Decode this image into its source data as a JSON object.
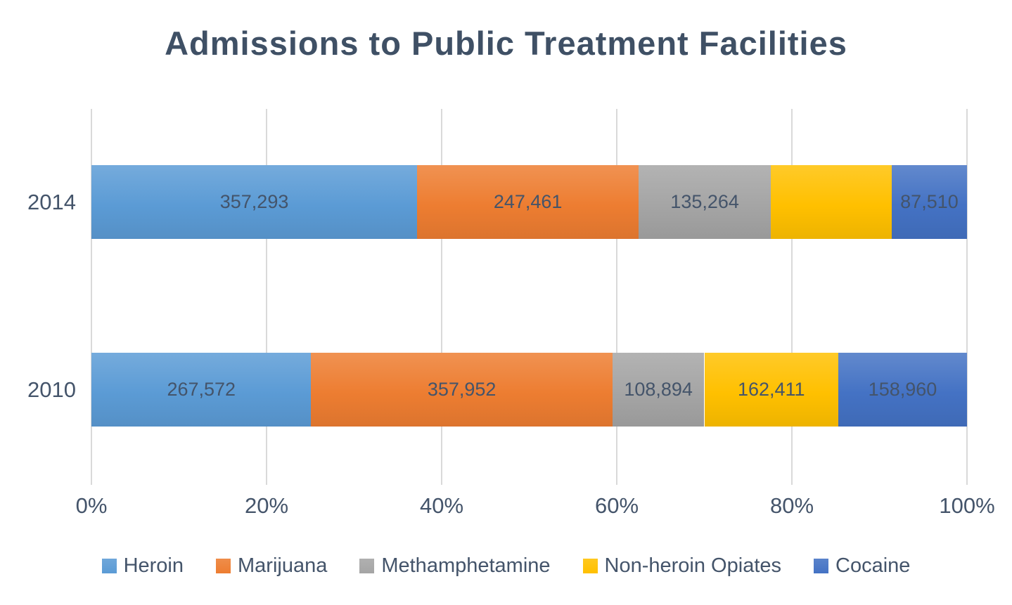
{
  "title": "Admissions to Public Treatment Facilities",
  "colors": {
    "text": "#44546A",
    "gridline": "#D9D9D9",
    "background": "#FFFFFF"
  },
  "chart_data": {
    "type": "bar",
    "orientation": "horizontal",
    "stacked": true,
    "percent_stacked": true,
    "title": "Admissions to Public Treatment Facilities",
    "categories": [
      "2014",
      "2010"
    ],
    "series": [
      {
        "name": "Heroin",
        "color": "#5B9BD5",
        "values": [
          357293,
          267572
        ],
        "labels": [
          "357,293",
          "267,572"
        ],
        "percent_widths": [
          37.2,
          25.1
        ]
      },
      {
        "name": "Marijuana",
        "color": "#ED7D31",
        "values": [
          247461,
          357952
        ],
        "labels": [
          "247,461",
          "357,952"
        ],
        "percent_widths": [
          25.3,
          34.4
        ]
      },
      {
        "name": "Methamphetamine",
        "color": "#A5A5A5",
        "values": [
          135264,
          108894
        ],
        "labels": [
          "135,264",
          "108,894"
        ],
        "percent_widths": [
          15.1,
          10.5
        ]
      },
      {
        "name": "Non-heroin Opiates",
        "color": "#FFC000",
        "values": [
          null,
          162411
        ],
        "labels": [
          "",
          "162,411"
        ],
        "percent_widths": [
          13.8,
          15.3
        ]
      },
      {
        "name": "Cocaine",
        "color": "#4472C4",
        "values": [
          87510,
          158960
        ],
        "labels": [
          "87,510",
          "158,960"
        ],
        "percent_widths": [
          8.6,
          14.7
        ]
      }
    ],
    "x_ticks": [
      "0%",
      "20%",
      "40%",
      "60%",
      "80%",
      "100%"
    ],
    "xlim": [
      0,
      100
    ],
    "xlabel": "",
    "ylabel": "",
    "grid": true,
    "legend_position": "bottom",
    "legend_items": [
      "Heroin",
      "Marijuana",
      "Methamphetamine",
      "Non-heroin Opiates",
      "Cocaine"
    ]
  }
}
